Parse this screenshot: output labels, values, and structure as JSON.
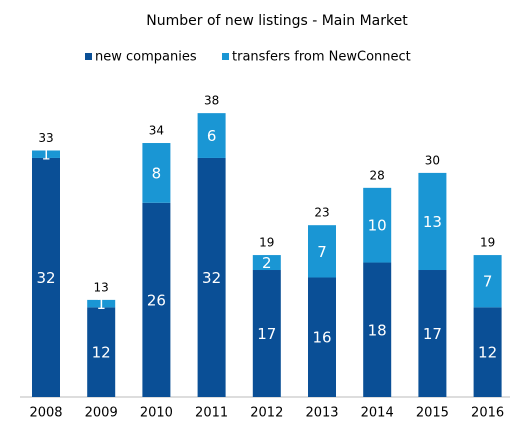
{
  "chart_data": {
    "type": "stacked_bar",
    "title": "Number of new listings  - Main Market",
    "categories": [
      "2008",
      "2009",
      "2010",
      "2011",
      "2012",
      "2013",
      "2014",
      "2015",
      "2016"
    ],
    "series": [
      {
        "name": "new companies",
        "color": "#0a4f96",
        "values": [
          32,
          12,
          26,
          32,
          17,
          16,
          18,
          17,
          12
        ]
      },
      {
        "name": "transfers from NewConnect",
        "color": "#1a96d4",
        "values": [
          1,
          1,
          8,
          6,
          2,
          7,
          10,
          13,
          7
        ]
      }
    ],
    "totals": [
      33,
      13,
      34,
      38,
      19,
      23,
      28,
      30,
      19
    ]
  }
}
